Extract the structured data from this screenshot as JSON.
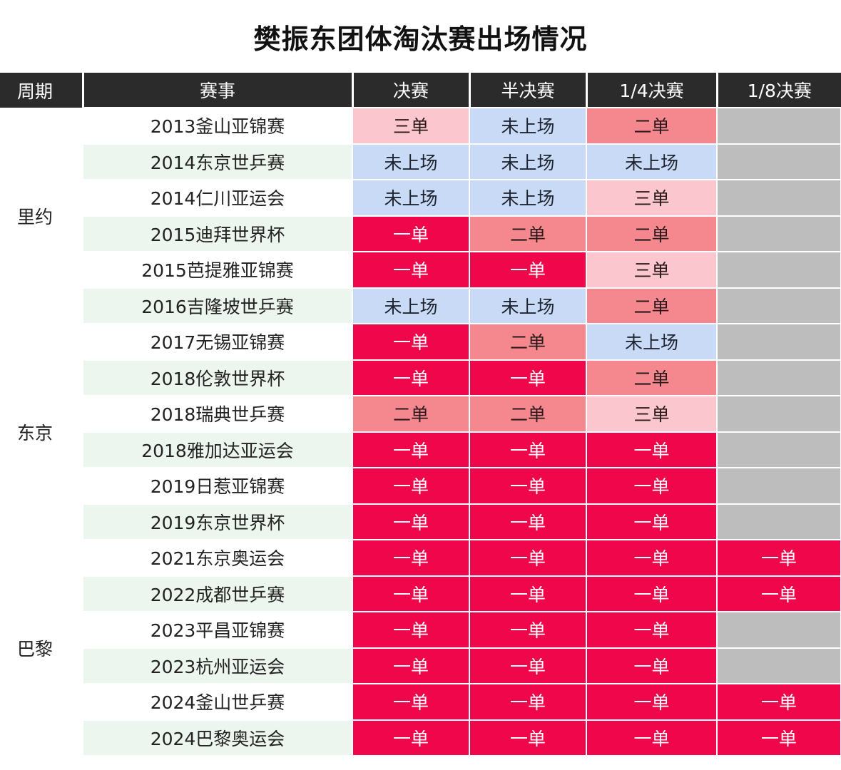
{
  "title": "樊振东团体淘汰赛出场情况",
  "columns": [
    "周期",
    "赛事",
    "决赛",
    "半决赛",
    "1/4决赛",
    "1/8决赛"
  ],
  "colors": {
    "一单": "#f0064a",
    "二单": "#f5878f",
    "三单": "#fbc6cd",
    "未上场": "#c9daf6",
    "empty": "#bdbdbd",
    "header": "#2b2b2b",
    "alt_row": "#edf6ee"
  },
  "rows": [
    {
      "event": "2013釜山亚锦赛",
      "final": "三单",
      "semi": "未上场",
      "quarter": "二单",
      "r16": ""
    },
    {
      "event": "2014东京世乒赛",
      "final": "未上场",
      "semi": "未上场",
      "quarter": "未上场",
      "r16": ""
    },
    {
      "event": "2014仁川亚运会",
      "final": "未上场",
      "semi": "未上场",
      "quarter": "三单",
      "r16": ""
    },
    {
      "event": "2015迪拜世界杯",
      "final": "一单",
      "semi": "二单",
      "quarter": "二单",
      "r16": ""
    },
    {
      "event": "2015芭提雅亚锦赛",
      "final": "一单",
      "semi": "一单",
      "quarter": "三单",
      "r16": ""
    },
    {
      "event": "2016吉隆坡世乒赛",
      "final": "未上场",
      "semi": "未上场",
      "quarter": "二单",
      "r16": ""
    },
    {
      "event": "2017无锡亚锦赛",
      "final": "一单",
      "semi": "二单",
      "quarter": "未上场",
      "r16": ""
    },
    {
      "event": "2018伦敦世界杯",
      "final": "一单",
      "semi": "一单",
      "quarter": "二单",
      "r16": ""
    },
    {
      "event": "2018瑞典世乒赛",
      "final": "二单",
      "semi": "二单",
      "quarter": "三单",
      "r16": ""
    },
    {
      "event": "2018雅加达亚运会",
      "final": "一单",
      "semi": "一单",
      "quarter": "一单",
      "r16": ""
    },
    {
      "event": "2019日惹亚锦赛",
      "final": "一单",
      "semi": "一单",
      "quarter": "一单",
      "r16": ""
    },
    {
      "event": "2019东京世界杯",
      "final": "一单",
      "semi": "一单",
      "quarter": "一单",
      "r16": ""
    },
    {
      "event": "2021东京奥运会",
      "final": "一单",
      "semi": "一单",
      "quarter": "一单",
      "r16": "一单"
    },
    {
      "event": "2022成都世乒赛",
      "final": "一单",
      "semi": "一单",
      "quarter": "一单",
      "r16": "一单"
    },
    {
      "event": "2023平昌亚锦赛",
      "final": "一单",
      "semi": "一单",
      "quarter": "一单",
      "r16": ""
    },
    {
      "event": "2023杭州亚运会",
      "final": "一单",
      "semi": "一单",
      "quarter": "一单",
      "r16": ""
    },
    {
      "event": "2024釜山世乒赛",
      "final": "一单",
      "semi": "一单",
      "quarter": "一单",
      "r16": "一单"
    },
    {
      "event": "2024巴黎奥运会",
      "final": "一单",
      "semi": "一单",
      "quarter": "一单",
      "r16": "一单"
    }
  ],
  "cycles": [
    {
      "label": "里约",
      "rows": 6
    },
    {
      "label": "东京",
      "rows": 6
    },
    {
      "label": "巴黎",
      "rows": 6
    }
  ]
}
